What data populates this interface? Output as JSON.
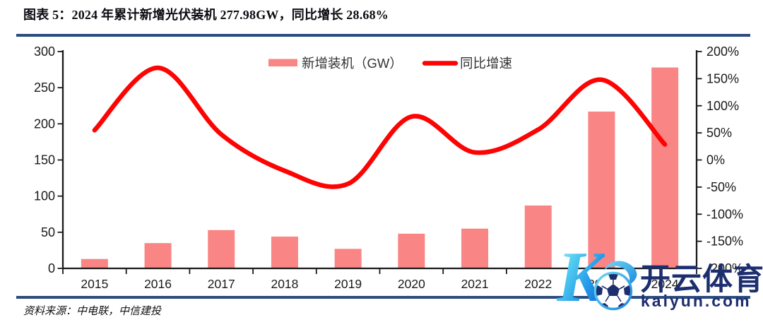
{
  "title": "图表 5：2024 年累计新增光伏装机 277.98GW，同比增长 28.68%",
  "source": "资料来源：中电联，中信建投",
  "colors": {
    "rule": "#2B4C7E",
    "bar_fill": "#FA8585",
    "line": "#FE0303",
    "axis": "#1a1a1a",
    "legend_text": "#333333",
    "watermark_navy": "#1d2e6f",
    "watermark_cyan": "#45C6EE",
    "watermark_blue": "#1B86DF"
  },
  "watermark": {
    "logo_letter": "K",
    "brand": "开云体育",
    "domain": "kaiyun.com"
  },
  "chart_data": {
    "type": "bar",
    "subtype": "combo bar + smoothed line, dual y-axis",
    "grid": "off",
    "legend_position": "top-center",
    "categories": [
      "2015",
      "2016",
      "2017",
      "2018",
      "2019",
      "2020",
      "2021",
      "2022",
      "2023",
      "2024"
    ],
    "series": [
      {
        "name": "新增装机（GW）",
        "type": "bar",
        "axis": "left",
        "values": [
          13,
          35,
          53,
          44,
          27,
          48,
          55,
          87,
          217,
          277.98
        ]
      },
      {
        "name": "同比增速",
        "type": "line",
        "axis": "right",
        "unit": "%",
        "values": [
          55,
          170,
          47,
          -20,
          -44,
          80,
          14,
          56,
          148,
          28.68
        ]
      }
    ],
    "left_axis": {
      "min": 0,
      "max": 300,
      "tick_values": [
        0,
        50,
        100,
        150,
        200,
        250,
        300
      ],
      "tick_labels": [
        "0",
        "50",
        "100",
        "150",
        "200",
        "250",
        "300"
      ]
    },
    "right_axis": {
      "min": -200,
      "max": 200,
      "tick_values": [
        200,
        150,
        100,
        50,
        0,
        -50,
        -100,
        -150,
        -200
      ],
      "tick_labels": [
        "200%",
        "150%",
        "100%",
        "50%",
        "0%",
        "-50%",
        "-100%",
        "-150%",
        "-200%"
      ]
    }
  }
}
